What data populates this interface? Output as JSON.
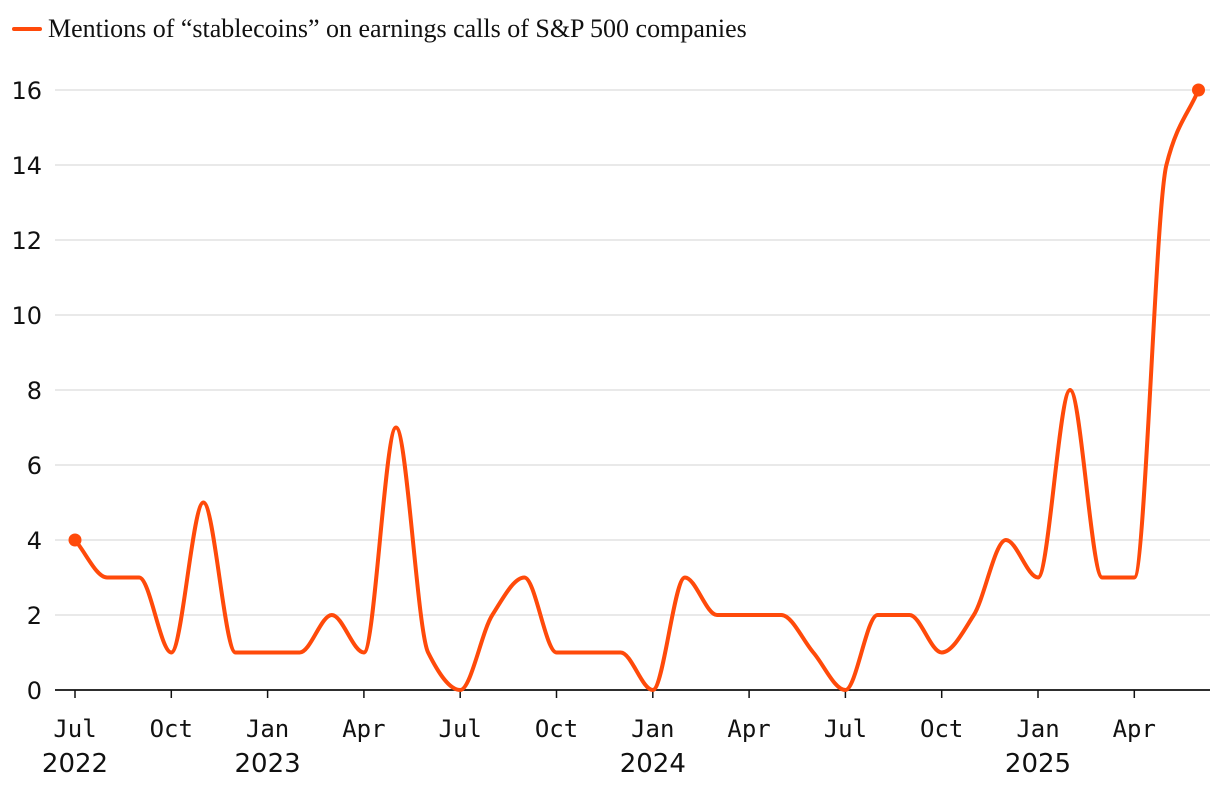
{
  "chart_data": {
    "type": "line",
    "series": [
      {
        "name": "Mentions of “stablecoins” on earnings calls of S&P 500 companies",
        "color": "#ff4a0a",
        "values": [
          4,
          3,
          3,
          1,
          5,
          1,
          1,
          1,
          2,
          1,
          7,
          1,
          0,
          2,
          3,
          1,
          1,
          1,
          0,
          3,
          2,
          2,
          2,
          1,
          0,
          2,
          2,
          1,
          2,
          4,
          3,
          8,
          3,
          3,
          14,
          16
        ],
        "x": [
          "2022-07",
          "2022-08",
          "2022-09",
          "2022-10",
          "2022-11",
          "2022-12",
          "2023-01",
          "2023-02",
          "2023-03",
          "2023-04",
          "2023-05",
          "2023-06",
          "2023-07",
          "2023-08",
          "2023-09",
          "2023-10",
          "2023-11",
          "2023-12",
          "2024-01",
          "2024-02",
          "2024-03",
          "2024-04",
          "2024-05",
          "2024-06",
          "2024-07",
          "2024-08",
          "2024-09",
          "2024-10",
          "2024-11",
          "2024-12",
          "2025-01",
          "2025-02",
          "2025-03",
          "2025-04",
          "2025-05",
          "2025-06"
        ]
      }
    ],
    "x_ticks": [
      {
        "month": "Jul",
        "year": "2022"
      },
      {
        "month": "Oct",
        "year": ""
      },
      {
        "month": "Jan",
        "year": "2023"
      },
      {
        "month": "Apr",
        "year": ""
      },
      {
        "month": "Jul",
        "year": ""
      },
      {
        "month": "Oct",
        "year": ""
      },
      {
        "month": "Jan",
        "year": "2024"
      },
      {
        "month": "Apr",
        "year": ""
      },
      {
        "month": "Jul",
        "year": ""
      },
      {
        "month": "Oct",
        "year": ""
      },
      {
        "month": "Jan",
        "year": "2025"
      },
      {
        "month": "Apr",
        "year": ""
      }
    ],
    "y_ticks": [
      0,
      2,
      4,
      6,
      8,
      10,
      12,
      14,
      16
    ],
    "ylim": [
      0,
      16
    ],
    "grid": true,
    "legend_position": "top-left",
    "endpoint_markers": true
  }
}
